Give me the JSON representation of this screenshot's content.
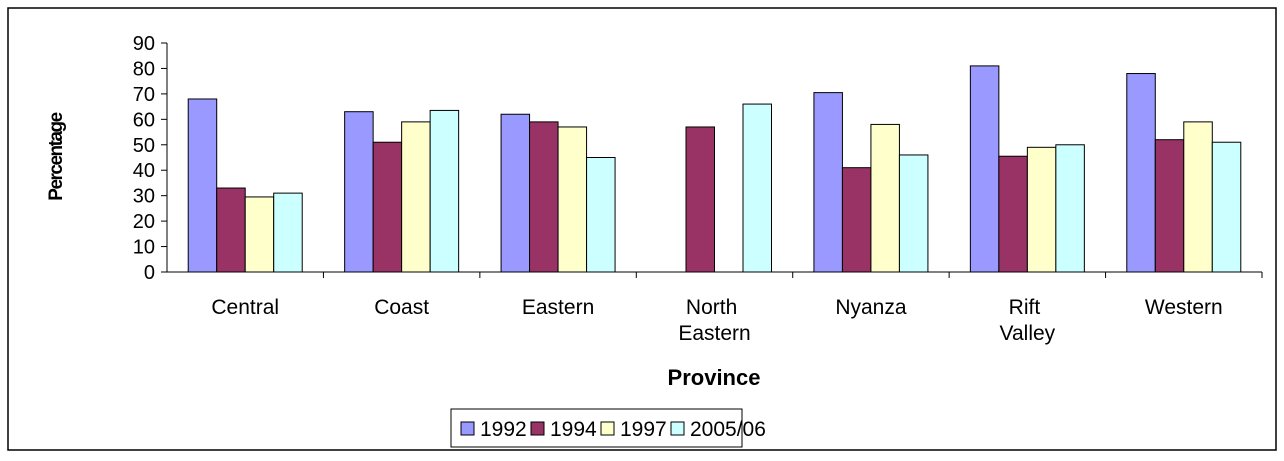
{
  "chart_data": {
    "type": "bar",
    "x_label": "Province",
    "y_label": "Percentage",
    "categories": [
      "Central",
      "Coast",
      "Eastern",
      "North Eastern",
      "Nyanza",
      "Rift Valley",
      "Western"
    ],
    "series": [
      {
        "name": "1992",
        "color": "#9999ff",
        "values": [
          68,
          63,
          62,
          null,
          70.5,
          81,
          78
        ]
      },
      {
        "name": "1994",
        "color": "#993366",
        "values": [
          33,
          51,
          59,
          57,
          41,
          45.5,
          52
        ]
      },
      {
        "name": "1997",
        "color": "#ffffcc",
        "values": [
          29.5,
          59,
          57,
          null,
          58,
          49,
          59
        ]
      },
      {
        "name": "2005/06",
        "color": "#ccffff",
        "values": [
          31,
          63.5,
          45,
          66,
          46,
          50,
          51
        ]
      }
    ],
    "ylim": [
      0,
      90
    ],
    "yticks": [
      0,
      10,
      20,
      30,
      40,
      50,
      60,
      70,
      80,
      90
    ],
    "grid": false,
    "legend": "bottom"
  }
}
